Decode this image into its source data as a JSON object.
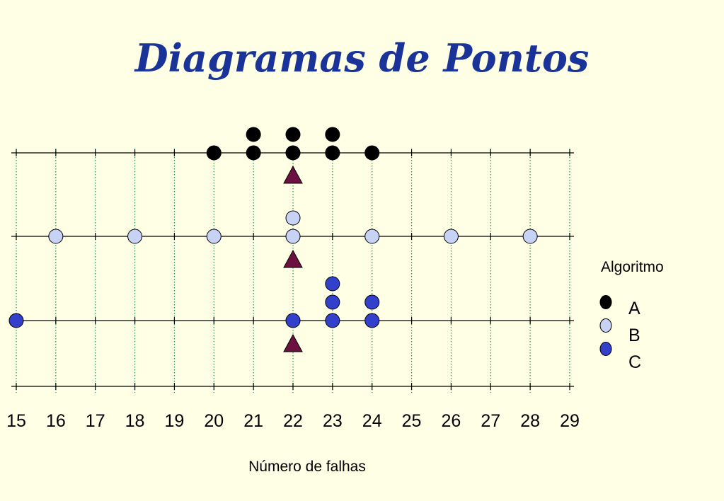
{
  "slide": {
    "title": "Diagramas de Pontos"
  },
  "chart_data": {
    "type": "scatter",
    "xlabel": "Número de falhas",
    "ylabel": "",
    "xlim": [
      15,
      29
    ],
    "x_ticks": [
      15,
      16,
      17,
      18,
      19,
      20,
      21,
      22,
      23,
      24,
      25,
      26,
      27,
      28,
      29
    ],
    "grid": "vertical dotted lines at each tick",
    "legend_title": "Algoritmo",
    "legend_position": "right",
    "series": [
      {
        "name": "A",
        "color": "#000000",
        "values": [
          20,
          21,
          21,
          22,
          22,
          23,
          23,
          24
        ],
        "mean_marker": 22
      },
      {
        "name": "B",
        "color": "#c8d2f5",
        "values": [
          16,
          18,
          20,
          22,
          22,
          24,
          26,
          28
        ],
        "mean_marker": 22
      },
      {
        "name": "C",
        "color": "#3340cc",
        "values": [
          15,
          22,
          23,
          23,
          23,
          24,
          24
        ],
        "mean_marker": 22
      }
    ],
    "mean_marker_color": "#6b1040"
  }
}
